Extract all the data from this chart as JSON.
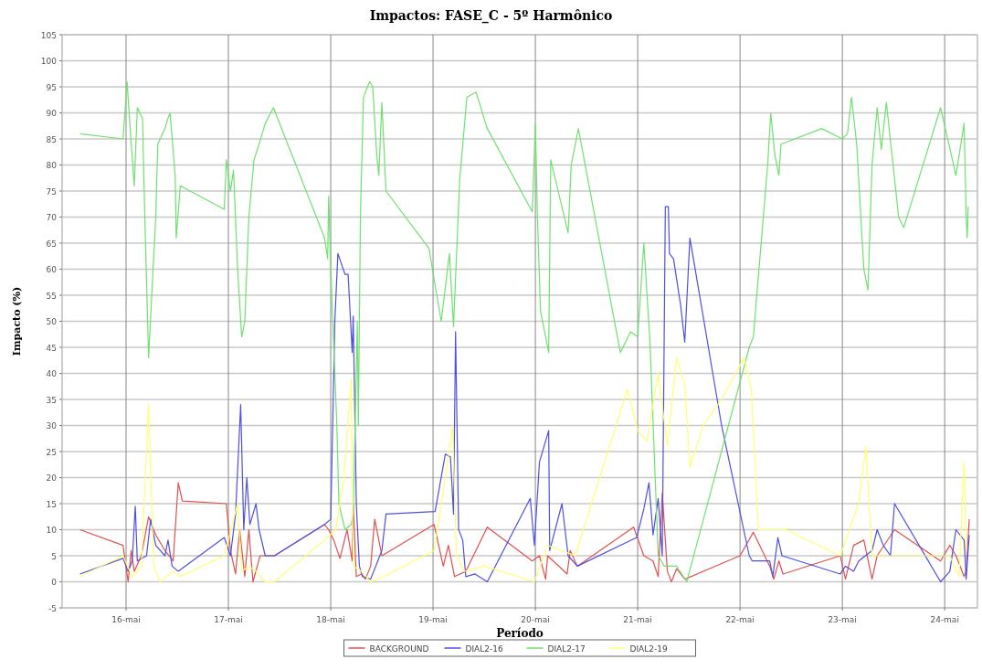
{
  "chart_data": {
    "type": "line",
    "title": "Impactos: FASE_C - 5º Harmônico",
    "xlabel": "Período",
    "ylabel": "Impacto (%)",
    "xlim": [
      15.375,
      24.32
    ],
    "xticks": [
      {
        "value": 16,
        "label": "16-mai"
      },
      {
        "value": 17,
        "label": "17-mai"
      },
      {
        "value": 18,
        "label": "18-mai"
      },
      {
        "value": 19,
        "label": "19-mai"
      },
      {
        "value": 20,
        "label": "20-mai"
      },
      {
        "value": 21,
        "label": "21-mai"
      },
      {
        "value": 22,
        "label": "22-mai"
      },
      {
        "value": 23,
        "label": "23-mai"
      },
      {
        "value": 24,
        "label": "24-mai"
      }
    ],
    "ylim": [
      -5,
      105
    ],
    "yticks": [
      -5,
      0,
      5,
      10,
      15,
      20,
      25,
      30,
      35,
      40,
      45,
      50,
      55,
      60,
      65,
      70,
      75,
      80,
      85,
      90,
      95,
      100,
      105
    ],
    "grid": true,
    "legend": "bottom",
    "marker": "none",
    "line_style": "solid",
    "series": [
      {
        "name": "BACKGROUND",
        "color": "#e05050",
        "x": [
          15.55,
          15.97,
          16.02,
          16.05,
          16.08,
          16.15,
          16.22,
          16.29,
          16.38,
          16.46,
          16.51,
          16.55,
          16.98,
          17.02,
          17.07,
          17.11,
          17.16,
          17.2,
          17.24,
          17.31,
          17.45,
          17.94,
          17.98,
          18.03,
          18.09,
          18.16,
          18.21,
          18.22,
          18.25,
          18.3,
          18.34,
          18.39,
          18.43,
          18.5,
          19.01,
          19.1,
          19.15,
          19.21,
          19.32,
          19.53,
          19.97,
          20.04,
          20.1,
          20.12,
          20.31,
          20.34,
          20.41,
          20.96,
          21.06,
          21.15,
          21.2,
          21.24,
          21.29,
          21.33,
          21.38,
          21.46,
          22.0,
          22.13,
          22.29,
          22.33,
          22.38,
          22.42,
          22.98,
          23.03,
          23.11,
          23.21,
          23.29,
          23.34,
          23.51,
          23.96,
          24.05,
          24.11,
          24.19,
          24.21,
          24.24
        ],
        "values": [
          10,
          7,
          0,
          6,
          2,
          5,
          12.5,
          9,
          6,
          4,
          19,
          15.5,
          15,
          6,
          1.5,
          10,
          1,
          10,
          0,
          5,
          5,
          11,
          10,
          8,
          4.5,
          10,
          4,
          15,
          1,
          1.5,
          0.5,
          3,
          12,
          5,
          11,
          3,
          7,
          1,
          2,
          10.5,
          4,
          5,
          0.5,
          5,
          1.5,
          6,
          3,
          10.5,
          5,
          4,
          1,
          17,
          2,
          0,
          2.5,
          0.5,
          5,
          9.5,
          3,
          0.5,
          4,
          1.5,
          5,
          0.5,
          7,
          8,
          0.5,
          5,
          10,
          4,
          7,
          5,
          1,
          2,
          12
        ]
      },
      {
        "name": "DIAL2-16",
        "color": "#5050e0",
        "x": [
          15.55,
          15.97,
          16.02,
          16.06,
          16.09,
          16.11,
          16.2,
          16.24,
          16.29,
          16.38,
          16.41,
          16.45,
          16.51,
          16.96,
          17.02,
          17.07,
          17.12,
          17.15,
          17.18,
          17.21,
          17.27,
          17.3,
          17.36,
          17.45,
          17.94,
          18.0,
          18.04,
          18.07,
          18.14,
          18.17,
          18.21,
          18.22,
          18.25,
          18.28,
          18.31,
          18.39,
          18.5,
          18.54,
          19.02,
          19.12,
          19.17,
          19.2,
          19.22,
          19.25,
          19.29,
          19.32,
          19.41,
          19.53,
          19.95,
          19.99,
          20.04,
          20.13,
          20.14,
          20.26,
          20.32,
          20.41,
          20.99,
          21.06,
          21.11,
          21.15,
          21.2,
          21.24,
          21.27,
          21.3,
          21.31,
          21.35,
          21.42,
          21.46,
          21.51,
          21.82,
          22.09,
          22.12,
          22.29,
          22.32,
          22.37,
          22.41,
          22.98,
          23.03,
          23.11,
          23.16,
          23.29,
          23.34,
          23.4,
          23.47,
          23.51,
          23.96,
          24.05,
          24.11,
          24.19,
          24.21,
          24.24
        ],
        "values": [
          1.5,
          4.5,
          2,
          4,
          14.5,
          4,
          5,
          12,
          7,
          5,
          8,
          3,
          2,
          8.5,
          5,
          13,
          34,
          10,
          20,
          11,
          15,
          10,
          5,
          5,
          11,
          12,
          50,
          63,
          59,
          59,
          44,
          51,
          15,
          3,
          1,
          0.5,
          6,
          13,
          13.5,
          24.5,
          24,
          13,
          48,
          10,
          8,
          1,
          1.5,
          0,
          16,
          7,
          23,
          29,
          6,
          15,
          5,
          3,
          8.5,
          14,
          19,
          9,
          16,
          5,
          72,
          72,
          63,
          62,
          53,
          46,
          66,
          30,
          5,
          4,
          4,
          1,
          8.5,
          5,
          1.5,
          3,
          2,
          4,
          6,
          10,
          7,
          5,
          15,
          0,
          2,
          10,
          8,
          0.5,
          9
        ]
      },
      {
        "name": "DIAL2-17",
        "color": "#70e070",
        "x": [
          15.55,
          15.97,
          16.01,
          16.04,
          16.08,
          16.11,
          16.16,
          16.19,
          16.22,
          16.29,
          16.31,
          16.38,
          16.41,
          16.43,
          16.48,
          16.49,
          16.53,
          16.96,
          16.98,
          17.02,
          17.05,
          17.09,
          17.13,
          17.16,
          17.2,
          17.25,
          17.3,
          17.36,
          17.44,
          17.48,
          17.94,
          17.97,
          17.98,
          18.0,
          18.06,
          18.08,
          18.14,
          18.2,
          18.22,
          18.26,
          18.27,
          18.29,
          18.32,
          18.38,
          18.41,
          18.45,
          18.47,
          18.5,
          18.54,
          18.96,
          19.08,
          19.16,
          19.2,
          19.26,
          19.33,
          19.42,
          19.53,
          19.97,
          20.0,
          20.02,
          20.05,
          20.13,
          20.15,
          20.32,
          20.35,
          20.42,
          20.83,
          20.93,
          21.0,
          21.06,
          21.12,
          21.2,
          21.26,
          21.38,
          21.48,
          21.52,
          22.09,
          22.13,
          22.27,
          22.3,
          22.34,
          22.38,
          22.4,
          22.8,
          23.0,
          23.05,
          23.09,
          23.14,
          23.21,
          23.25,
          23.29,
          23.34,
          23.38,
          23.43,
          23.55,
          23.6,
          23.96,
          24.11,
          24.19,
          24.21,
          24.22,
          24.23
        ],
        "values": [
          86,
          85,
          96,
          87,
          76,
          91,
          89,
          65,
          43,
          70,
          84,
          87,
          89,
          90,
          78,
          66,
          76,
          71.5,
          81,
          75,
          79,
          60,
          47,
          50,
          70,
          81,
          84,
          88,
          91,
          89,
          66,
          62,
          74,
          60,
          30,
          15,
          10,
          11,
          13,
          50,
          30,
          70,
          93,
          96,
          95,
          82,
          78,
          92,
          75,
          64,
          50,
          63,
          49,
          77,
          93,
          94,
          87,
          71,
          88,
          70,
          52,
          44,
          81,
          67,
          80,
          87,
          44,
          48,
          47,
          65,
          46,
          5,
          3,
          3,
          0,
          3,
          45,
          47,
          80,
          90,
          82,
          78,
          84,
          87,
          85,
          86,
          93,
          84,
          60,
          56,
          80,
          91,
          83,
          92,
          70,
          68,
          91,
          78,
          88,
          70,
          66,
          72
        ]
      },
      {
        "name": "DIAL2-19",
        "color": "#ffff70",
        "x": [
          15.55,
          15.97,
          16.06,
          16.15,
          16.22,
          16.27,
          16.33,
          16.46,
          16.53,
          16.96,
          17.09,
          17.13,
          17.2,
          17.27,
          17.36,
          17.45,
          17.94,
          18.05,
          18.13,
          18.2,
          18.22,
          18.3,
          18.39,
          18.52,
          19.01,
          19.12,
          19.19,
          19.23,
          19.3,
          19.5,
          19.99,
          20.12,
          20.39,
          20.9,
          21.0,
          21.09,
          21.2,
          21.29,
          21.38,
          21.46,
          21.51,
          21.64,
          21.82,
          22.04,
          22.11,
          22.18,
          22.45,
          22.98,
          23.16,
          23.23,
          23.29,
          23.96,
          24.05,
          24.14,
          24.19,
          24.21
        ],
        "values": [
          1,
          5,
          1,
          3,
          34,
          3,
          0,
          2,
          1,
          5,
          15,
          2,
          3,
          2,
          0,
          0,
          8,
          10,
          20,
          39,
          3,
          2,
          0,
          1,
          6,
          20,
          30,
          5,
          2,
          3,
          0,
          7,
          5,
          37,
          29,
          27,
          40,
          26,
          43,
          38,
          22,
          30,
          35,
          43,
          37,
          10,
          10,
          5,
          15,
          26,
          5,
          5,
          5,
          1,
          23,
          6
        ]
      }
    ]
  }
}
